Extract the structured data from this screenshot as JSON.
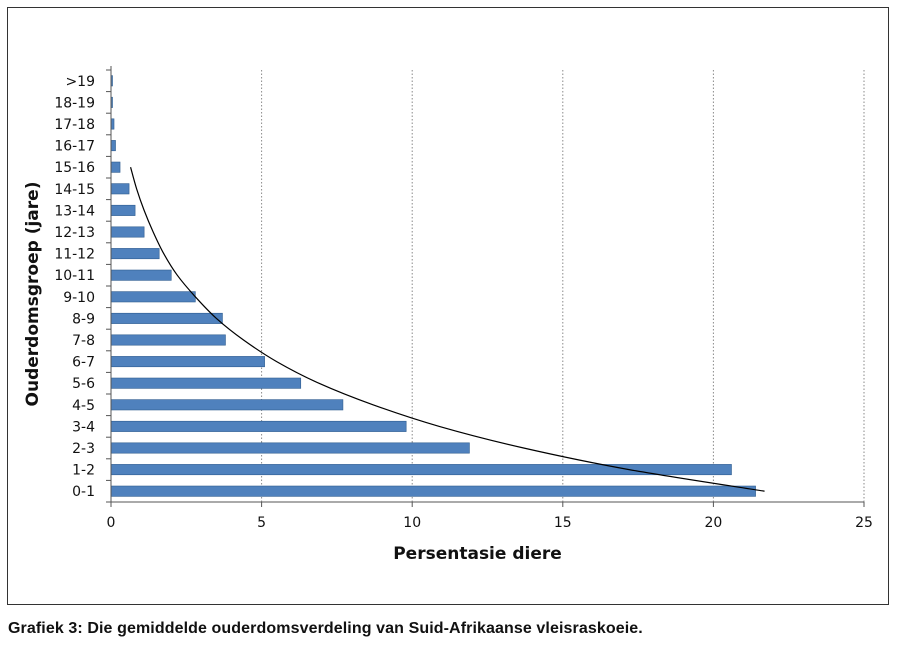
{
  "chart_data": {
    "type": "bar",
    "orientation": "horizontal",
    "categories": [
      "0-1",
      "1-2",
      "2-3",
      "3-4",
      "4-5",
      "5-6",
      "6-7",
      "7-8",
      "8-9",
      "9-10",
      "10-11",
      "11-12",
      "12-13",
      "13-14",
      "14-15",
      "15-16",
      "16-17",
      "17-18",
      "18-19",
      ">19"
    ],
    "values": [
      21.4,
      20.6,
      11.9,
      9.8,
      7.7,
      6.3,
      5.1,
      3.8,
      3.7,
      2.8,
      2.0,
      1.6,
      1.1,
      0.8,
      0.6,
      0.3,
      0.15,
      0.1,
      0.05,
      0.05
    ],
    "trendline": {
      "type": "exponential",
      "values": [
        21.7,
        17.2,
        13.7,
        10.9,
        8.7,
        6.9,
        5.5,
        4.4,
        3.5,
        2.8,
        2.2,
        1.75,
        1.4,
        1.1,
        0.85,
        0.65
      ]
    },
    "xlabel": "Persentasie diere",
    "ylabel": "Ouderdomsgroep (jare)",
    "xlim": [
      0,
      25
    ],
    "xticks": [
      0,
      5,
      10,
      15,
      20,
      25
    ],
    "grid": "vertical-dotted",
    "bar_color": "#4f81bd",
    "trendline_color": "#000000"
  },
  "caption": "Grafiek 3: Die gemiddelde ouderdomsverdeling van Suid-Afrikaanse vleisraskoeie."
}
